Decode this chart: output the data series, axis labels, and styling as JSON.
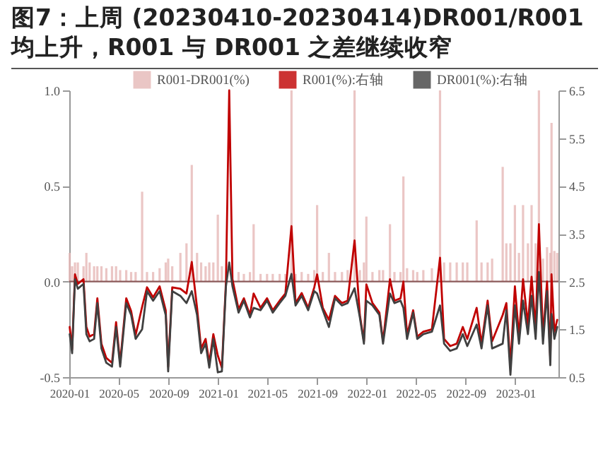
{
  "chart_data": {
    "type": "bar",
    "title": "图7：上周 (20230410-20230414)DR001/R001  均上升，R001 与 DR001 之差继续收窄",
    "x": [
      "2020-01-02",
      "2020-01-08",
      "2020-01-15",
      "2020-01-22",
      "2020-02-05",
      "2020-02-12",
      "2020-02-20",
      "2020-03-02",
      "2020-03-10",
      "2020-03-20",
      "2020-04-01",
      "2020-04-15",
      "2020-04-25",
      "2020-05-05",
      "2020-05-20",
      "2020-06-01",
      "2020-06-12",
      "2020-06-28",
      "2020-07-10",
      "2020-07-25",
      "2020-08-10",
      "2020-08-25",
      "2020-08-31",
      "2020-09-10",
      "2020-09-30",
      "2020-10-15",
      "2020-10-28",
      "2020-11-10",
      "2020-11-20",
      "2020-12-01",
      "2020-12-10",
      "2020-12-20",
      "2020-12-31",
      "2021-01-10",
      "2021-01-20",
      "2021-01-28",
      "2021-02-05",
      "2021-02-20",
      "2021-03-05",
      "2021-03-20",
      "2021-03-29",
      "2021-04-15",
      "2021-05-01",
      "2021-05-15",
      "2021-06-01",
      "2021-06-15",
      "2021-06-30",
      "2021-07-10",
      "2021-07-25",
      "2021-08-10",
      "2021-08-25",
      "2021-09-01",
      "2021-09-15",
      "2021-09-30",
      "2021-10-15",
      "2021-11-01",
      "2021-11-15",
      "2021-12-02",
      "2021-12-15",
      "2021-12-25",
      "2021-12-31",
      "2022-01-15",
      "2022-02-01",
      "2022-02-10",
      "2022-02-27",
      "2022-03-10",
      "2022-03-25",
      "2022-04-01",
      "2022-04-10",
      "2022-04-25",
      "2022-05-05",
      "2022-05-20",
      "2022-06-10",
      "2022-06-30",
      "2022-07-10",
      "2022-07-25",
      "2022-08-10",
      "2022-08-25",
      "2022-09-05",
      "2022-09-28",
      "2022-10-10",
      "2022-10-25",
      "2022-11-05",
      "2022-12-01",
      "2022-12-10",
      "2022-12-20",
      "2022-12-31",
      "2023-01-10",
      "2023-01-20",
      "2023-02-01",
      "2023-02-10",
      "2023-02-20",
      "2023-02-28",
      "2023-03-10",
      "2023-03-20",
      "2023-03-28",
      "2023-03-31",
      "2023-04-07",
      "2023-04-14"
    ],
    "series": [
      {
        "name": "R001-DR001(%)",
        "color": "#e6b8b7",
        "values": [
          0.15,
          0.08,
          0.1,
          0.1,
          0.08,
          0.15,
          0.1,
          0.08,
          0.08,
          0.08,
          0.07,
          0.08,
          0.08,
          0.06,
          0.06,
          0.05,
          0.05,
          0.47,
          0.05,
          0.05,
          0.07,
          0.1,
          0.12,
          0.08,
          0.15,
          0.2,
          0.61,
          0.15,
          0.1,
          0.08,
          0.1,
          0.1,
          0.35,
          0.08,
          null,
          null,
          null,
          0.05,
          0.04,
          0.05,
          0.3,
          0.04,
          0.04,
          0.04,
          0.04,
          0.04,
          1.0,
          0.04,
          0.05,
          0.04,
          0.06,
          0.4,
          0.05,
          0.15,
          0.05,
          0.05,
          0.06,
          1.0,
          0.06,
          0.1,
          0.34,
          0.05,
          0.06,
          0.06,
          0.3,
          0.05,
          0.05,
          0.55,
          0.07,
          0.06,
          0.05,
          0.06,
          0.07,
          1.0,
          0.1,
          0.1,
          0.1,
          0.1,
          0.1,
          0.32,
          0.1,
          0.1,
          0.12,
          0.6,
          0.2,
          0.2,
          0.4,
          0.15,
          0.4,
          0.2,
          0.4,
          0.2,
          1.0,
          0.12,
          0.18,
          0.15,
          0.83,
          0.16,
          0.15
        ]
      },
      {
        "name": "R001(%):右轴",
        "type": "line",
        "axis": "y2",
        "color": "#c00000",
        "values": [
          1.55,
          1.08,
          2.65,
          2.45,
          2.55,
          1.55,
          1.35,
          1.4,
          2.15,
          1.2,
          0.9,
          0.8,
          1.65,
          0.8,
          2.15,
          1.88,
          1.38,
          1.97,
          2.38,
          2.17,
          2.4,
          1.9,
          0.72,
          2.38,
          2.35,
          2.25,
          2.91,
          1.95,
          1.1,
          1.3,
          0.8,
          1.4,
          0.95,
          0.7,
          2.5,
          6.5,
          2.55,
          1.92,
          2.15,
          1.8,
          2.25,
          1.95,
          2.15,
          1.9,
          2.1,
          2.25,
          3.66,
          2.05,
          2.26,
          1.95,
          2.38,
          2.65,
          1.95,
          1.7,
          2.2,
          2.05,
          2.1,
          3.36,
          1.8,
          1.25,
          2.44,
          2.05,
          1.85,
          1.25,
          2.55,
          2.1,
          2.15,
          2.5,
          1.38,
          1.9,
          1.35,
          1.45,
          1.5,
          3.0,
          1.3,
          1.15,
          1.2,
          1.55,
          1.3,
          1.95,
          1.2,
          2.1,
          1.25,
          1.8,
          2.05,
          0.75,
          2.4,
          1.35,
          2.55,
          1.6,
          2.6,
          1.5,
          3.7,
          1.35,
          2.5,
          0.9,
          2.65,
          1.45,
          1.7
        ]
      },
      {
        "name": "DR001(%):右轴",
        "type": "line",
        "axis": "y2",
        "color": "#404040",
        "values": [
          1.4,
          1.0,
          2.55,
          2.35,
          2.45,
          1.4,
          1.25,
          1.3,
          2.05,
          1.1,
          0.8,
          0.72,
          1.55,
          0.72,
          2.05,
          1.8,
          1.3,
          1.5,
          2.3,
          2.1,
          2.3,
          1.8,
          0.62,
          2.3,
          2.2,
          2.05,
          2.3,
          1.8,
          1.0,
          1.2,
          0.7,
          1.3,
          0.6,
          0.62,
          2.4,
          2.9,
          2.4,
          1.85,
          2.1,
          1.75,
          1.95,
          1.9,
          2.1,
          1.85,
          2.05,
          2.2,
          2.66,
          2.0,
          2.2,
          1.9,
          2.3,
          2.25,
          1.9,
          1.55,
          2.15,
          2.0,
          2.05,
          2.36,
          1.75,
          1.2,
          2.1,
          2.0,
          1.8,
          1.2,
          2.25,
          2.05,
          2.1,
          1.95,
          1.3,
          1.85,
          1.3,
          1.4,
          1.45,
          2.0,
          1.2,
          1.05,
          1.1,
          1.4,
          1.15,
          1.6,
          1.1,
          2.0,
          1.1,
          1.2,
          1.9,
          0.55,
          2.0,
          1.2,
          2.1,
          1.4,
          2.2,
          1.3,
          2.7,
          1.2,
          2.3,
          0.75,
          1.82,
          1.3,
          1.55
        ]
      }
    ],
    "xlim": [
      "2020-01-01",
      "2023-04-17"
    ],
    "xticks": [
      "2020-01",
      "2020-05",
      "2020-09",
      "2021-01",
      "2021-05",
      "2021-09",
      "2022-01",
      "2022-05",
      "2022-09",
      "2023-01"
    ],
    "ylim": [
      -0.5,
      1.0
    ],
    "yticks": [
      -0.5,
      {
        "value": 0,
        "label": "0.0"
      },
      0.5,
      {
        "value": 1,
        "label": "1.0"
      }
    ],
    "y2lim": [
      0.5,
      6.5
    ],
    "y2ticks": [
      0.5,
      1.5,
      2.5,
      3.5,
      4.5,
      5.5,
      6.5
    ],
    "ref_lines": [
      {
        "axis": "y",
        "value": 0,
        "color": "#8b5a5a"
      }
    ],
    "legend": "top"
  }
}
